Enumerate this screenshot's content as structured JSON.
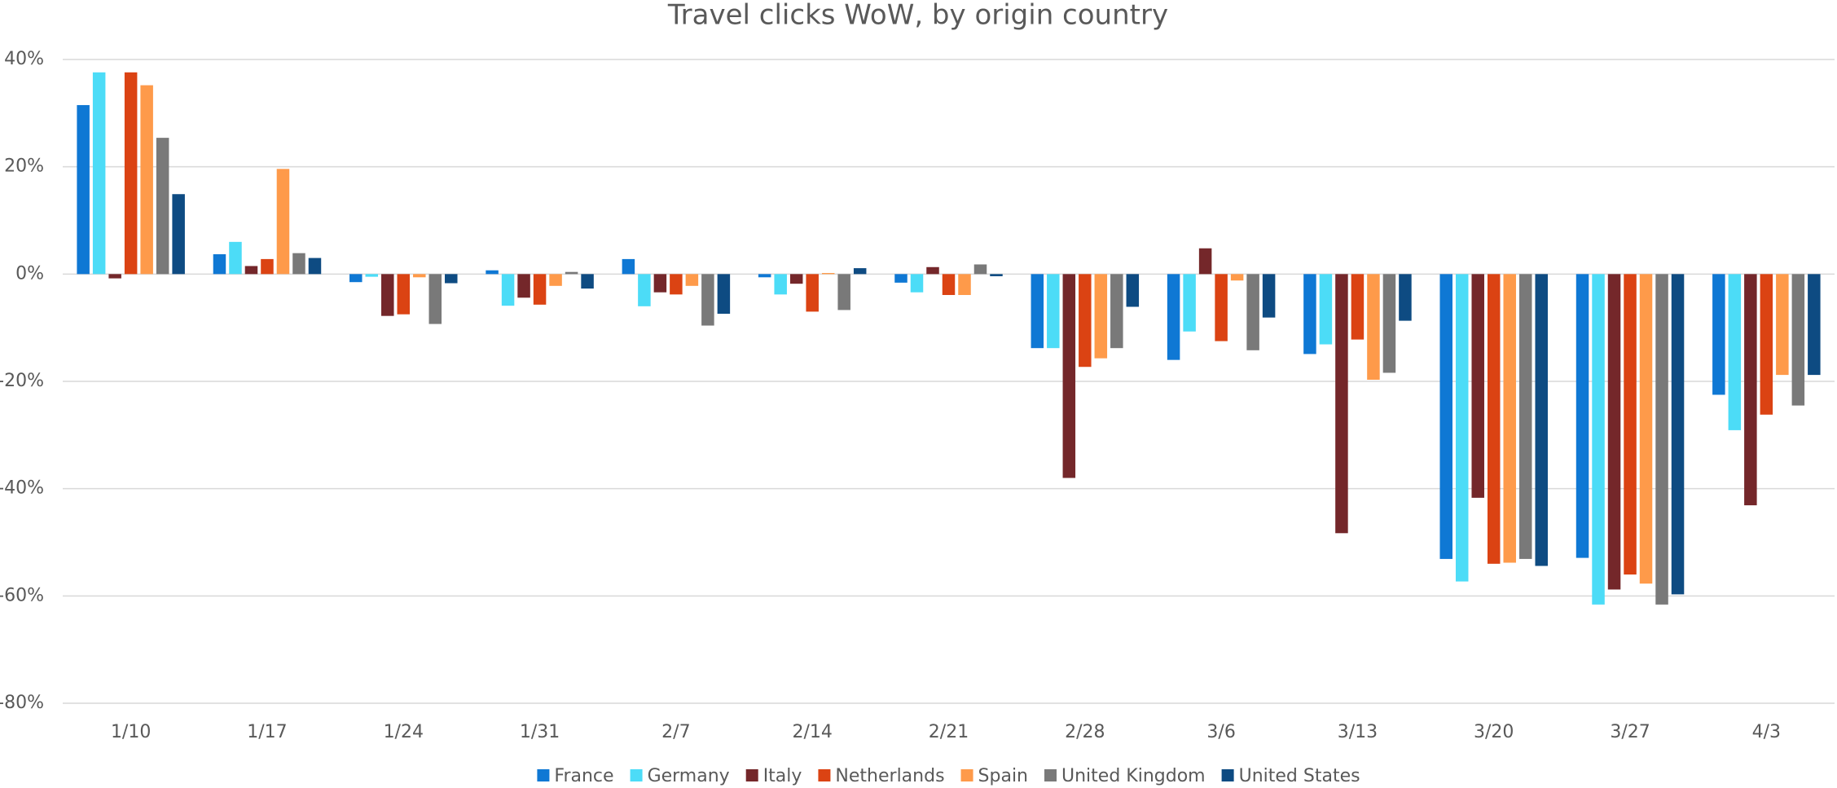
{
  "chart_data": {
    "type": "bar",
    "title": "Travel clicks WoW, by origin country",
    "categories": [
      "1/10",
      "1/17",
      "1/24",
      "1/31",
      "2/7",
      "2/14",
      "2/21",
      "2/28",
      "3/6",
      "3/13",
      "3/20",
      "3/27",
      "4/3"
    ],
    "series": [
      {
        "name": "France",
        "color": "#0f78d4",
        "values": [
          31.5,
          3.7,
          -1.5,
          0.7,
          2.8,
          -0.6,
          -1.6,
          -13.8,
          -16,
          -14.9,
          -53.1,
          -52.9,
          -22.5
        ]
      },
      {
        "name": "Germany",
        "color": "#4cdcf7",
        "values": [
          37.6,
          6,
          -0.5,
          -5.9,
          -6,
          -3.8,
          -3.4,
          -13.8,
          -10.7,
          -13.1,
          -57.3,
          -61.6,
          -29.1
        ]
      },
      {
        "name": "Italy",
        "color": "#74272a",
        "values": [
          -0.8,
          1.5,
          -7.8,
          -4.4,
          -3.4,
          -1.8,
          1.3,
          -38,
          4.8,
          -48.3,
          -41.7,
          -58.8,
          -43.1
        ]
      },
      {
        "name": "Netherlands",
        "color": "#db4313",
        "values": [
          37.6,
          2.8,
          -7.5,
          -5.7,
          -3.8,
          -7,
          -3.9,
          -17.3,
          -12.5,
          -12.2,
          -54,
          -56,
          -26.2
        ]
      },
      {
        "name": "Spain",
        "color": "#fe9a4a",
        "values": [
          35.2,
          19.6,
          -0.6,
          -2.2,
          -2.2,
          0.2,
          -3.9,
          -15.7,
          -1.2,
          -19.7,
          -53.8,
          -57.7,
          -18.8
        ]
      },
      {
        "name": "United Kingdom",
        "color": "#797979",
        "values": [
          25.4,
          3.9,
          -9.3,
          0.4,
          -9.6,
          -6.7,
          1.8,
          -13.8,
          -14.2,
          -18.4,
          -53.1,
          -61.6,
          -24.5
        ]
      },
      {
        "name": "United States",
        "color": "#0e4b82",
        "values": [
          14.9,
          3,
          -1.7,
          -2.7,
          -7.4,
          1.1,
          -0.4,
          -6.1,
          -8.1,
          -8.7,
          -54.4,
          -59.7,
          -18.8
        ]
      }
    ],
    "ylim": [
      -80,
      40
    ],
    "yticks": [
      {
        "value": -80,
        "label": "-80%"
      },
      {
        "value": -60,
        "label": "-60%"
      },
      {
        "value": -40,
        "label": "-40%"
      },
      {
        "value": -20,
        "label": "-20%"
      },
      {
        "value": 0,
        "label": "0%"
      },
      {
        "value": 20,
        "label": "20%"
      },
      {
        "value": 40,
        "label": "40%"
      }
    ],
    "grid": true,
    "legend": "bottom"
  }
}
